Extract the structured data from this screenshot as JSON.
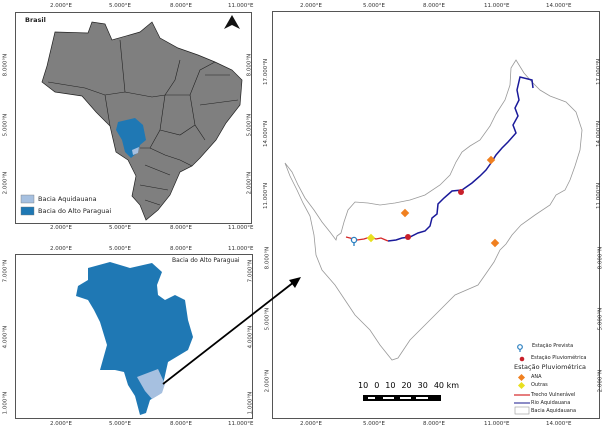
{
  "panels": {
    "brazil": {
      "title": "Brasil",
      "ticks_e": [
        "2.000°E",
        "5.000°E",
        "8.000°E",
        "11.000°E"
      ],
      "ticks_n": [
        "8.000°N",
        "5.000°N",
        "2.000°N"
      ],
      "legend": [
        "Bacia Aquidauana",
        "Bacia do Alto Paraguai"
      ]
    },
    "alto_paraguai": {
      "title": "Bacia do Alto Paraguai",
      "ticks_e": [
        "2.000°E",
        "5.000°E",
        "8.000°E",
        "11.000°E"
      ],
      "ticks_n": [
        "7.000°N",
        "4.000°N",
        "1.000°N"
      ]
    },
    "aquidauana": {
      "ticks_e": [
        "2.000°E",
        "5.000°E",
        "8.000°E",
        "11.000°E",
        "14.000°E"
      ],
      "ticks_n": [
        "17.000°N",
        "14.000°N",
        "11.000°N",
        "8.000°N",
        "5.000°N",
        "2.000°N"
      ],
      "scale_labels": [
        "10",
        "0",
        "10",
        "20",
        "30",
        "40 km"
      ],
      "legend": {
        "prevista": "Estação Prevista",
        "pluviometrica": "Estação Pluviométrica",
        "heading": "Estação Pluviométrica",
        "ana": "ANA",
        "outras": "Outras",
        "trecho": "Trecho Vulnerável",
        "rio": "Rio Aquidauana",
        "bacia": "Bacia Aquidauana"
      }
    }
  },
  "colors": {
    "brazil": "#7f7f7f",
    "alto_paraguai": "#1f78b4",
    "aquidauana": "#a6c0e0",
    "river": "#1a1a9a",
    "trecho": "#d62728",
    "ana": "#f08020",
    "outras": "#e8e020",
    "pluvio": "#c8202a"
  }
}
